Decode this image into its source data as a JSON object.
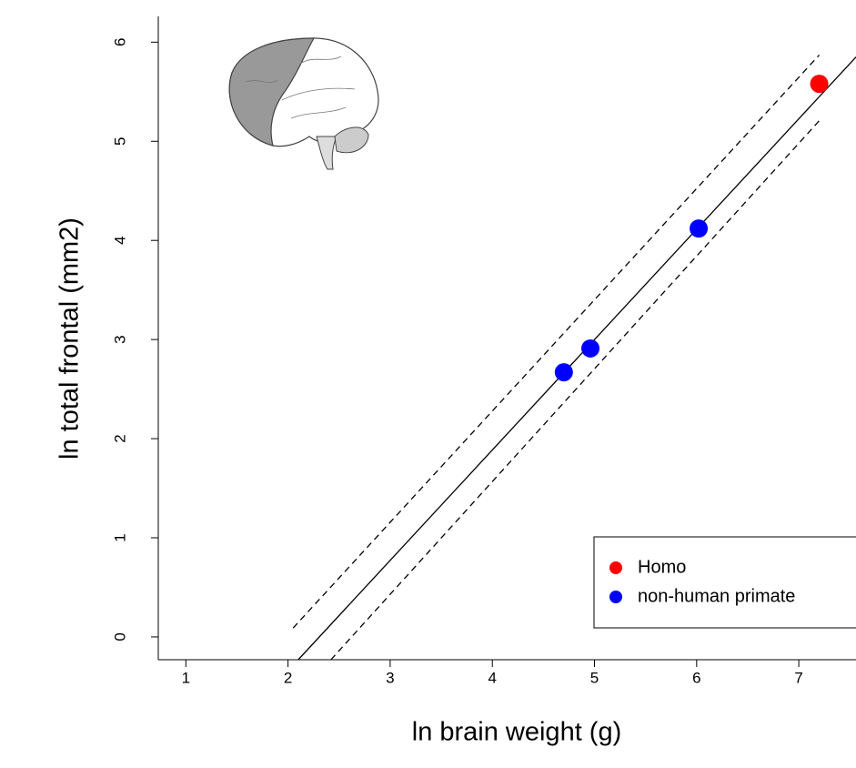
{
  "chart_data": {
    "type": "scatter",
    "xlabel": "ln brain weight (g)",
    "ylabel": "ln total frontal (mm2)",
    "xlim": [
      0.73,
      7.56
    ],
    "ylim": [
      -0.23,
      6.26
    ],
    "xticks": [
      1,
      2,
      3,
      4,
      5,
      6,
      7
    ],
    "yticks": [
      0,
      1,
      2,
      3,
      4,
      5,
      6
    ],
    "legend": "bottom right",
    "series": [
      {
        "name": "Homo",
        "color": "#ff0000",
        "x": [
          7.2
        ],
        "values": [
          5.58
        ]
      },
      {
        "name": "non-human primate",
        "color": "#0000ff",
        "x": [
          4.7,
          4.96,
          6.02
        ],
        "values": [
          2.67,
          2.91,
          4.12
        ]
      }
    ],
    "lines": [
      {
        "style": "solid",
        "x": [
          2.1,
          7.56
        ],
        "values": [
          -0.23,
          5.85
        ]
      },
      {
        "style": "dashed",
        "x": [
          2.05,
          7.2
        ],
        "values": [
          0.09,
          5.87
        ]
      },
      {
        "style": "dashed",
        "x": [
          2.42,
          7.22
        ],
        "values": [
          -0.23,
          5.23
        ]
      }
    ]
  }
}
